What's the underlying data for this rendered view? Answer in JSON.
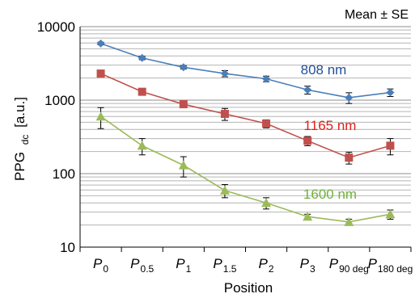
{
  "chart_data": {
    "type": "line",
    "annotation": "Mean ± SE",
    "ylabel_main": "PPG",
    "ylabel_sub": "dc",
    "ylabel_unit": "[a.u.]",
    "xlabel": "Position",
    "yscale": "log",
    "ylim": [
      10,
      10000
    ],
    "yticks": [
      "10",
      "100",
      "1000",
      "10000"
    ],
    "grid": true,
    "categories": [
      {
        "main": "P",
        "sub": "0"
      },
      {
        "main": "P",
        "sub": "0.5"
      },
      {
        "main": "P",
        "sub": "1"
      },
      {
        "main": "P",
        "sub": "1.5"
      },
      {
        "main": "P",
        "sub": "2"
      },
      {
        "main": "P",
        "sub": "3"
      },
      {
        "main": "P",
        "sub": "90 deg"
      },
      {
        "main": "P",
        "sub": "180 deg"
      }
    ],
    "series": [
      {
        "name": "808 nm",
        "color": "#4a7ebb",
        "marker": "diamond",
        "values": [
          5900,
          3750,
          2800,
          2300,
          1950,
          1380,
          1080,
          1270
        ],
        "errors": [
          250,
          200,
          150,
          220,
          170,
          170,
          180,
          150
        ]
      },
      {
        "name": "1165 nm",
        "color": "#c0504d",
        "marker": "square",
        "values": [
          2300,
          1300,
          880,
          650,
          480,
          280,
          165,
          240
        ],
        "errors": [
          80,
          60,
          50,
          120,
          60,
          40,
          30,
          60
        ]
      },
      {
        "name": "1600 nm",
        "color": "#9bbb59",
        "marker": "triangle",
        "values": [
          600,
          240,
          130,
          59,
          40,
          26,
          22,
          28
        ],
        "errors": [
          190,
          60,
          40,
          12,
          7,
          2,
          2,
          4
        ]
      }
    ],
    "label_colors": {
      "808 nm": "#1f4e98",
      "1165 nm": "#e0201f",
      "1600 nm": "#6fb23a"
    }
  }
}
